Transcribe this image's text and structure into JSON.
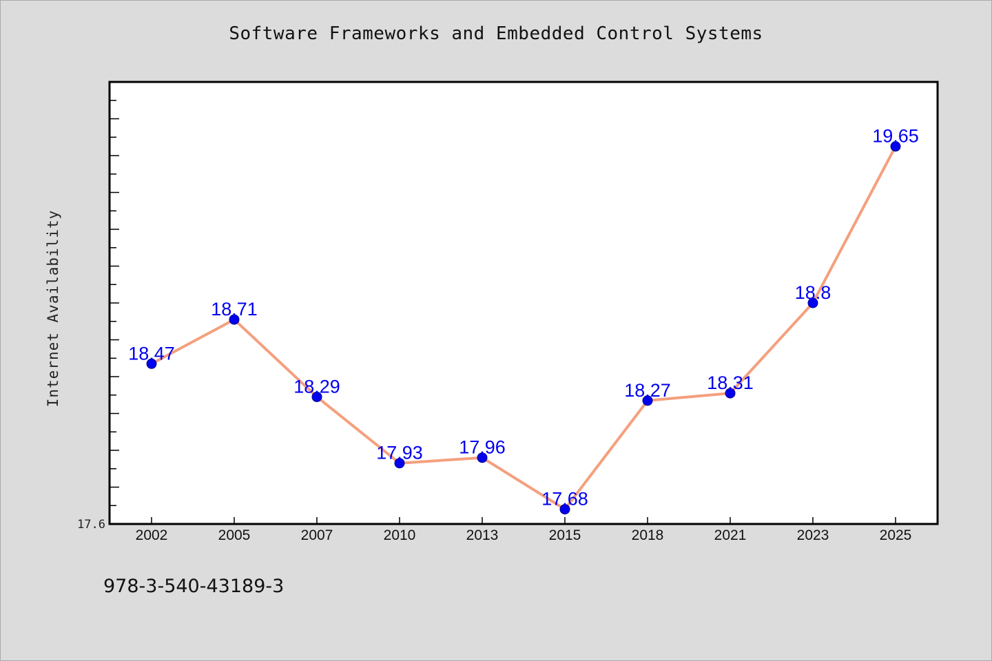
{
  "chart_data": {
    "type": "line",
    "title": "Software Frameworks and Embedded Control Systems",
    "xlabel": "",
    "ylabel": "Internet Availability",
    "categories": [
      "2002",
      "2005",
      "2007",
      "2010",
      "2013",
      "2015",
      "2018",
      "2021",
      "2023",
      "2025"
    ],
    "series": [
      {
        "values": [
          18.47,
          18.71,
          18.29,
          17.93,
          17.96,
          17.68,
          18.27,
          18.31,
          18.8,
          19.65
        ],
        "labels": [
          "18.47",
          "18.71",
          "18.29",
          "17.93",
          "17.96",
          "17.68",
          "18.27",
          "18.31",
          "18.8",
          "19.65"
        ]
      }
    ],
    "ylim": [
      17.6,
      20.0
    ],
    "y_tick_labels": [
      "17.6"
    ],
    "grid": false,
    "colors": {
      "line": "#f4a07e",
      "marker": "#0000ee",
      "data_label": "#0000ee",
      "plot_background": "#ffffff",
      "page_background": "#dcdcdc"
    }
  },
  "footer": {
    "isbn": "978-3-540-43189-3"
  }
}
